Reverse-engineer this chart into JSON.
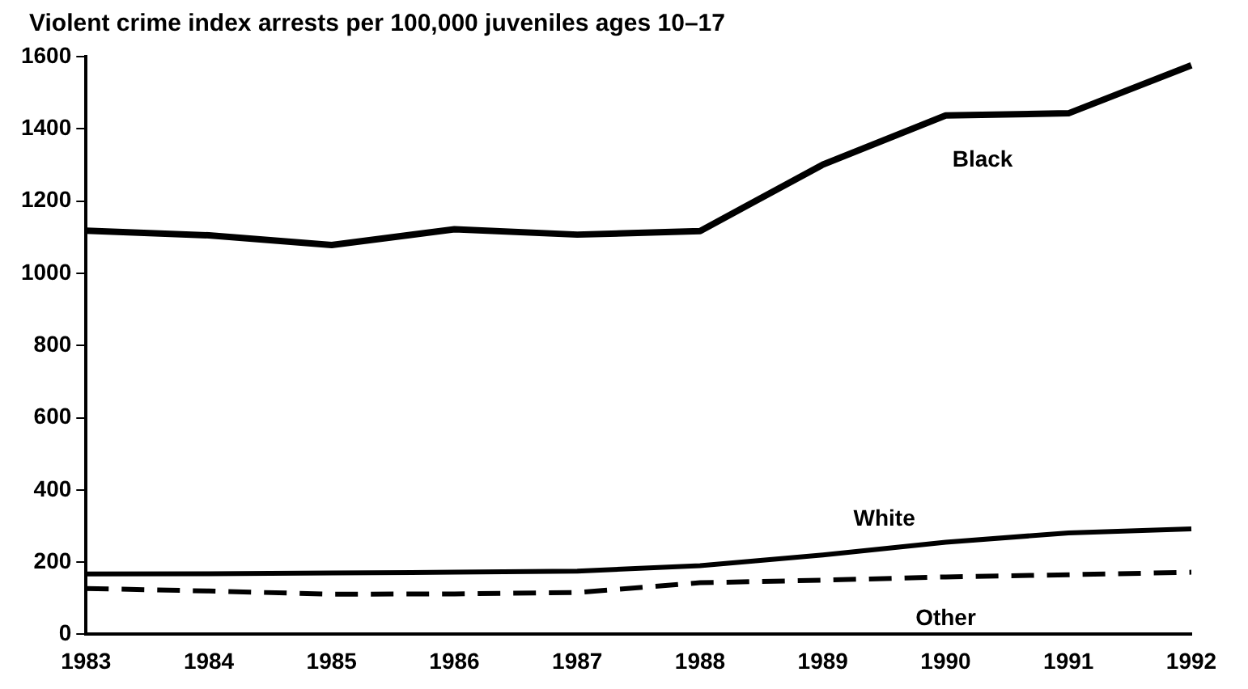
{
  "chart_data": {
    "type": "line",
    "title": "Violent crime index arrests per 100,000 juveniles ages 10–17",
    "categories": [
      "1983",
      "1984",
      "1985",
      "1986",
      "1987",
      "1988",
      "1989",
      "1990",
      "1991",
      "1992"
    ],
    "series": [
      {
        "name": "Black",
        "color": "#000000",
        "values": [
          1118,
          1105,
          1078,
          1122,
          1107,
          1117,
          1301,
          1437,
          1443,
          1576
        ]
      },
      {
        "name": "White",
        "color": "#000000",
        "values": [
          167,
          168,
          170,
          172,
          175,
          190,
          220,
          255,
          281,
          292
        ]
      },
      {
        "name": "Other",
        "color": "#000000",
        "line_style": "dashed",
        "values": [
          127,
          120,
          111,
          112,
          116,
          143,
          150,
          159,
          165,
          172
        ]
      }
    ],
    "ylim": [
      0,
      1600
    ],
    "yticks": [
      0,
      200,
      400,
      600,
      800,
      1000,
      1200,
      1400,
      1600
    ],
    "grid": false,
    "legend": false,
    "marker": "none"
  }
}
